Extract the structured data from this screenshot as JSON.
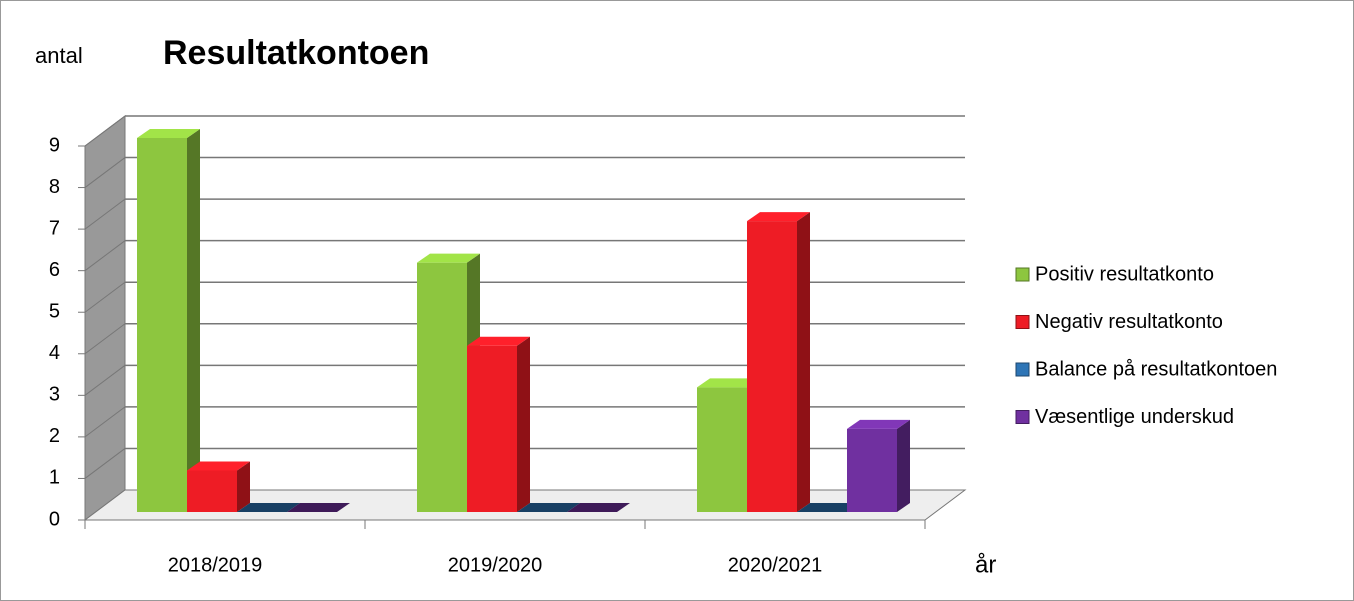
{
  "chart_data": {
    "type": "bar3d",
    "title": "Resultatkontoen",
    "y_label": "antal",
    "x_label": "år",
    "categories": [
      "2018/2019",
      "2019/2020",
      "2020/2021"
    ],
    "series": [
      {
        "name": "Positiv resultatkonto",
        "color": "#8dc63f",
        "values": [
          9,
          6,
          3
        ]
      },
      {
        "name": "Negativ resultatkonto",
        "color": "#ee1c25",
        "values": [
          1,
          4,
          7
        ]
      },
      {
        "name": "Balance på resultatkontoen",
        "color": "#2e75b6",
        "values": [
          0,
          0,
          0
        ]
      },
      {
        "name": "Væsentlige underskud",
        "color": "#7030a0",
        "values": [
          0,
          0,
          2
        ]
      }
    ],
    "ylim": [
      0,
      9
    ],
    "yticks": [
      0,
      1,
      2,
      3,
      4,
      5,
      6,
      7,
      8,
      9
    ],
    "grid": true,
    "legend": "right"
  }
}
